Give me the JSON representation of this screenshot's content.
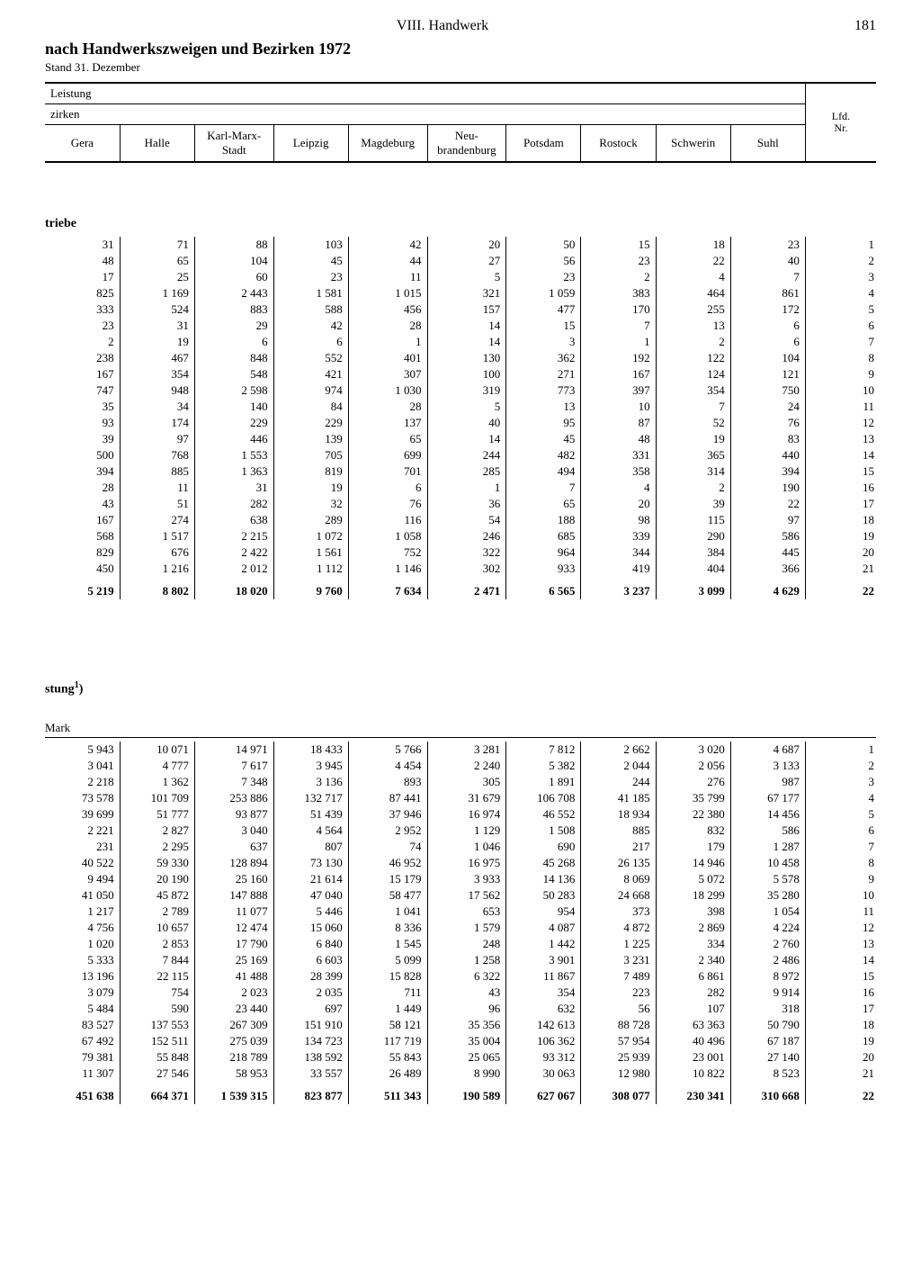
{
  "header": {
    "chapter": "VIII. Handwerk",
    "page_number": "181",
    "title": "nach Handwerkszweigen und Bezirken 1972",
    "subtitle": "Stand 31. Dezember",
    "leistung": "Leistung",
    "zirken": "zirken",
    "lfd_nr": "Lfd.\nNr.",
    "cols": [
      "Gera",
      "Halle",
      "Karl-Marx-\nStadt",
      "Leipzig",
      "Magdeburg",
      "Neu-\nbrandenburg",
      "Potsdam",
      "Rostock",
      "Schwerin",
      "Suhl"
    ]
  },
  "section1": {
    "label": "triebe",
    "rows": [
      [
        "31",
        "71",
        "88",
        "103",
        "42",
        "20",
        "50",
        "15",
        "18",
        "23",
        "1"
      ],
      [
        "48",
        "65",
        "104",
        "45",
        "44",
        "27",
        "56",
        "23",
        "22",
        "40",
        "2"
      ],
      [
        "17",
        "25",
        "60",
        "23",
        "11",
        "5",
        "23",
        "2",
        "4",
        "7",
        "3"
      ],
      [
        "825",
        "1 169",
        "2 443",
        "1 581",
        "1 015",
        "321",
        "1 059",
        "383",
        "464",
        "861",
        "4"
      ],
      [
        "333",
        "524",
        "883",
        "588",
        "456",
        "157",
        "477",
        "170",
        "255",
        "172",
        "5"
      ],
      [
        "23",
        "31",
        "29",
        "42",
        "28",
        "14",
        "15",
        "7",
        "13",
        "6",
        "6"
      ],
      [
        "2",
        "19",
        "6",
        "6",
        "1",
        "14",
        "3",
        "1",
        "2",
        "6",
        "7"
      ],
      [
        "238",
        "467",
        "848",
        "552",
        "401",
        "130",
        "362",
        "192",
        "122",
        "104",
        "8"
      ],
      [
        "167",
        "354",
        "548",
        "421",
        "307",
        "100",
        "271",
        "167",
        "124",
        "121",
        "9"
      ],
      [
        "747",
        "948",
        "2 598",
        "974",
        "1 030",
        "319",
        "773",
        "397",
        "354",
        "750",
        "10"
      ],
      [
        "35",
        "34",
        "140",
        "84",
        "28",
        "5",
        "13",
        "10",
        "7",
        "24",
        "11"
      ],
      [
        "93",
        "174",
        "229",
        "229",
        "137",
        "40",
        "95",
        "87",
        "52",
        "76",
        "12"
      ],
      [
        "39",
        "97",
        "446",
        "139",
        "65",
        "14",
        "45",
        "48",
        "19",
        "83",
        "13"
      ],
      [
        "500",
        "768",
        "1 553",
        "705",
        "699",
        "244",
        "482",
        "331",
        "365",
        "440",
        "14"
      ],
      [
        "394",
        "885",
        "1 363",
        "819",
        "701",
        "285",
        "494",
        "358",
        "314",
        "394",
        "15"
      ],
      [
        "28",
        "11",
        "31",
        "19",
        "6",
        "1",
        "7",
        "4",
        "2",
        "190",
        "16"
      ],
      [
        "43",
        "51",
        "282",
        "32",
        "76",
        "36",
        "65",
        "20",
        "39",
        "22",
        "17"
      ],
      [
        "167",
        "274",
        "638",
        "289",
        "116",
        "54",
        "188",
        "98",
        "115",
        "97",
        "18"
      ],
      [
        "568",
        "1 517",
        "2 215",
        "1 072",
        "1 058",
        "246",
        "685",
        "339",
        "290",
        "586",
        "19"
      ],
      [
        "829",
        "676",
        "2 422",
        "1 561",
        "752",
        "322",
        "964",
        "344",
        "384",
        "445",
        "20"
      ],
      [
        "450",
        "1 216",
        "2 012",
        "1 112",
        "1 146",
        "302",
        "933",
        "419",
        "404",
        "366",
        "21"
      ]
    ],
    "total": [
      "5 219",
      "8 802",
      "18 020",
      "9 760",
      "7 634",
      "2 471",
      "6 565",
      "3 237",
      "3 099",
      "4 629",
      "22"
    ]
  },
  "section2": {
    "label": "stung¹)",
    "sub": "Mark",
    "rows": [
      [
        "5 943",
        "10 071",
        "14 971",
        "18 433",
        "5 766",
        "3 281",
        "7 812",
        "2 662",
        "3 020",
        "4 687",
        "1"
      ],
      [
        "3 041",
        "4 777",
        "7 617",
        "3 945",
        "4 454",
        "2 240",
        "5 382",
        "2 044",
        "2 056",
        "3 133",
        "2"
      ],
      [
        "2 218",
        "1 362",
        "7 348",
        "3 136",
        "893",
        "305",
        "1 891",
        "244",
        "276",
        "987",
        "3"
      ],
      [
        "73 578",
        "101 709",
        "253 886",
        "132 717",
        "87 441",
        "31 679",
        "106 708",
        "41 185",
        "35 799",
        "67 177",
        "4"
      ],
      [
        "39 699",
        "51 777",
        "93 877",
        "51 439",
        "37 946",
        "16 974",
        "46 552",
        "18 934",
        "22 380",
        "14 456",
        "5"
      ],
      [
        "2 221",
        "2 827",
        "3 040",
        "4 564",
        "2 952",
        "1 129",
        "1 508",
        "885",
        "832",
        "586",
        "6"
      ],
      [
        "231",
        "2 295",
        "637",
        "807",
        "74",
        "1 046",
        "690",
        "217",
        "179",
        "1 287",
        "7"
      ],
      [
        "40 522",
        "59 330",
        "128 894",
        "73 130",
        "46 952",
        "16 975",
        "45 268",
        "26 135",
        "14 946",
        "10 458",
        "8"
      ],
      [
        "9 494",
        "20 190",
        "25 160",
        "21 614",
        "15 179",
        "3 933",
        "14 136",
        "8 069",
        "5 072",
        "5 578",
        "9"
      ],
      [
        "41 050",
        "45 872",
        "147 888",
        "47 040",
        "58 477",
        "17 562",
        "50 283",
        "24 668",
        "18 299",
        "35 280",
        "10"
      ],
      [
        "1 217",
        "2 789",
        "11 077",
        "5 446",
        "1 041",
        "653",
        "954",
        "373",
        "398",
        "1 054",
        "11"
      ],
      [
        "4 756",
        "10 657",
        "12 474",
        "15 060",
        "8 336",
        "1 579",
        "4 087",
        "4 872",
        "2 869",
        "4 224",
        "12"
      ],
      [
        "1 020",
        "2 853",
        "17 790",
        "6 840",
        "1 545",
        "248",
        "1 442",
        "1 225",
        "334",
        "2 760",
        "13"
      ],
      [
        "5 333",
        "7 844",
        "25 169",
        "6 603",
        "5 099",
        "1 258",
        "3 901",
        "3 231",
        "2 340",
        "2 486",
        "14"
      ],
      [
        "13 196",
        "22 115",
        "41 488",
        "28 399",
        "15 828",
        "6 322",
        "11 867",
        "7 489",
        "6 861",
        "8 972",
        "15"
      ],
      [
        "3 079",
        "754",
        "2 023",
        "2 035",
        "711",
        "43",
        "354",
        "223",
        "282",
        "9 914",
        "16"
      ],
      [
        "5 484",
        "590",
        "23 440",
        "697",
        "1 449",
        "96",
        "632",
        "56",
        "107",
        "318",
        "17"
      ],
      [
        "83 527",
        "137 553",
        "267 309",
        "151 910",
        "58 121",
        "35 356",
        "142 613",
        "88 728",
        "63 363",
        "50 790",
        "18"
      ],
      [
        "67 492",
        "152 511",
        "275 039",
        "134 723",
        "117 719",
        "35 004",
        "106 362",
        "57 954",
        "40 496",
        "67 187",
        "19"
      ],
      [
        "79 381",
        "55 848",
        "218 789",
        "138 592",
        "55 843",
        "25 065",
        "93 312",
        "25 939",
        "23 001",
        "27 140",
        "20"
      ],
      [
        "11 307",
        "27 546",
        "58 953",
        "33 557",
        "26 489",
        "8 990",
        "30 063",
        "12 980",
        "10 822",
        "8 523",
        "21"
      ]
    ],
    "total": [
      "451 638",
      "664 371",
      "1 539 315",
      "823 877",
      "511 343",
      "190 589",
      "627 067",
      "308 077",
      "230 341",
      "310 668",
      "22"
    ]
  }
}
